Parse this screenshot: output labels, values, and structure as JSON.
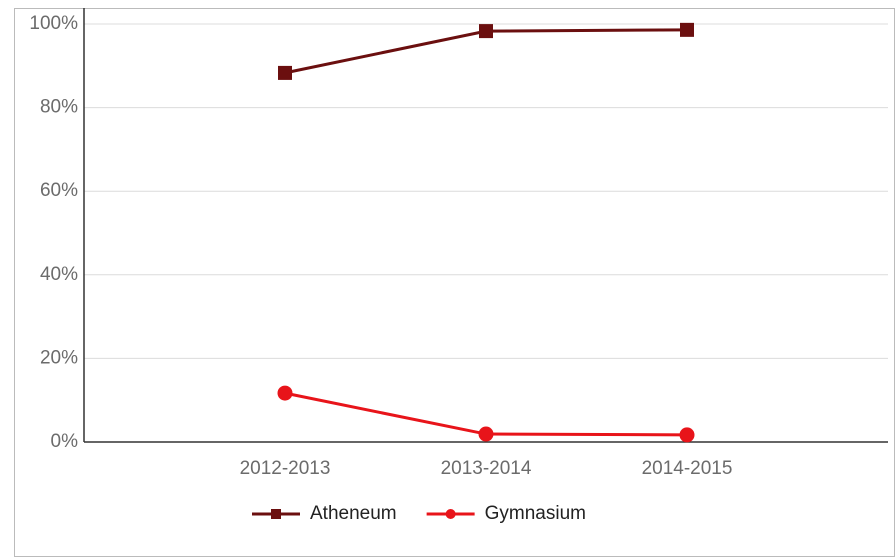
{
  "chart_data": {
    "type": "line",
    "categories": [
      "2012-2013",
      "2013-2014",
      "2014-2015"
    ],
    "series": [
      {
        "name": "Atheneum",
        "color": "#6b0f0f",
        "marker": "square",
        "values": [
          88.3,
          98.3,
          98.6
        ]
      },
      {
        "name": "Gymnasium",
        "color": "#e8141a",
        "marker": "circle",
        "values": [
          11.7,
          1.9,
          1.7
        ]
      }
    ],
    "ylim": [
      0,
      100
    ],
    "yticks": [
      {
        "value": 0,
        "label": "0%"
      },
      {
        "value": 20,
        "label": "20%"
      },
      {
        "value": 40,
        "label": "40%"
      },
      {
        "value": 60,
        "label": "60%"
      },
      {
        "value": 80,
        "label": "80%"
      },
      {
        "value": 100,
        "label": "100%"
      }
    ],
    "grid": true,
    "legend": "bottom"
  }
}
